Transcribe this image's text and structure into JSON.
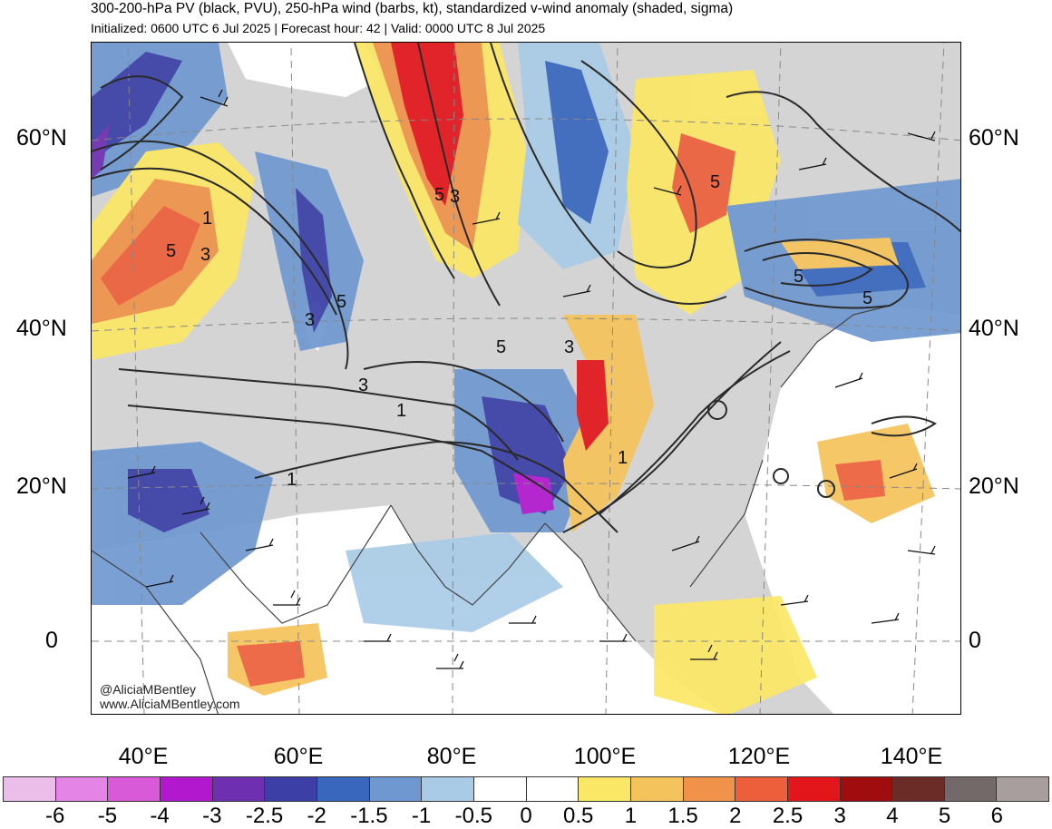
{
  "header": {
    "title": "300-200-hPa PV (black, PVU), 250-hPa wind (barbs, kt), standardized v-wind anomaly (shaded, sigma)",
    "subtitle": "Initialized: 0600 UTC 6 Jul 2025 | Forecast hour: 42 | Valid: 0000 UTC 8 Jul 2025"
  },
  "map": {
    "lat_labels": [
      "60°N",
      "40°N",
      "20°N",
      "0"
    ],
    "lon_labels": [
      "40°E",
      "60°E",
      "80°E",
      "100°E",
      "120°E",
      "140°E"
    ],
    "pv_contour_labels": [
      "5",
      "1",
      "5",
      "3",
      "5",
      "3",
      "5",
      "3",
      "5",
      "3",
      "3",
      "1",
      "1",
      "1",
      "5",
      "5"
    ],
    "credit_handle": "@AliciaMBentley",
    "credit_url": "www.AliciaMBentley.com",
    "palette": {
      "ocean": "#ffffff",
      "land": "#d4d4d4",
      "contour": "#2a2a2a",
      "coast": "#444444"
    }
  },
  "colorbar": {
    "labels": [
      "-6",
      "-5",
      "-4",
      "-3",
      "-2.5",
      "-2",
      "-1.5",
      "-1",
      "-0.5",
      "0",
      "0.5",
      "1",
      "1.5",
      "2",
      "2.5",
      "3",
      "4",
      "5",
      "6"
    ],
    "colors": [
      "#ebbde9",
      "#e384e6",
      "#d95ad8",
      "#b219cf",
      "#6e2fb0",
      "#3b3fa6",
      "#3867bd",
      "#6f98d0",
      "#a9cbe6",
      "#ffffff",
      "#ffffff",
      "#fbe766",
      "#f5c35b",
      "#f0924a",
      "#ec5f3a",
      "#e3161c",
      "#a00d0f",
      "#6b2b27",
      "#736969",
      "#a89e9e"
    ]
  }
}
